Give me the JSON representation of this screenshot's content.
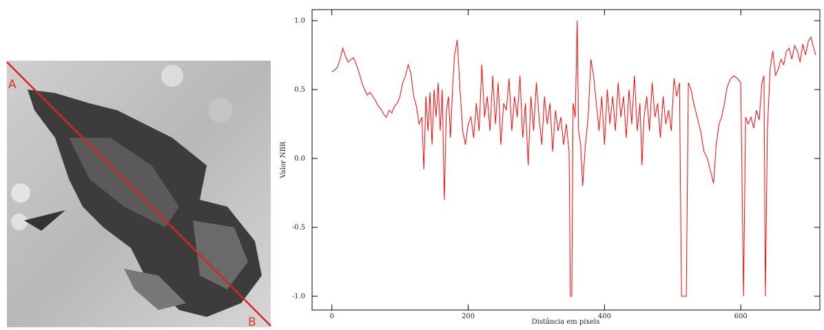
{
  "image": {
    "start_label": "A",
    "end_label": "B"
  },
  "chart_data": {
    "type": "line",
    "ylabel": "Valor NBR",
    "xlabel": "Distância em pixels",
    "xlim": [
      -29,
      716
    ],
    "ylim": [
      -1.1,
      1.08
    ],
    "xticks": [
      0,
      200,
      400,
      600
    ],
    "yticks": [
      {
        "value": -1,
        "label": "-1.0"
      },
      -0.5,
      {
        "value": 0,
        "label": "0.0"
      },
      0.5,
      {
        "value": 1,
        "label": "1.0"
      }
    ],
    "series": [
      {
        "name": "NBR",
        "color": "#ff0000",
        "x": [
          0,
          4,
          8,
          12,
          16,
          20,
          24,
          28,
          32,
          36,
          40,
          44,
          48,
          52,
          56,
          60,
          64,
          68,
          72,
          76,
          80,
          84,
          88,
          92,
          96,
          100,
          104,
          108,
          112,
          116,
          120,
          124,
          128,
          132,
          135,
          138,
          141,
          144,
          147,
          150,
          153,
          156,
          159,
          162,
          165,
          168,
          171,
          174,
          177,
          180,
          184,
          188,
          192,
          196,
          200,
          204,
          208,
          212,
          216,
          220,
          224,
          228,
          232,
          236,
          240,
          244,
          248,
          252,
          256,
          260,
          264,
          268,
          272,
          276,
          280,
          284,
          288,
          292,
          296,
          300,
          304,
          308,
          312,
          316,
          320,
          324,
          328,
          332,
          336,
          340,
          344,
          348,
          350,
          352,
          354,
          357,
          360,
          362,
          365,
          368,
          372,
          376,
          380,
          384,
          388,
          392,
          396,
          400,
          404,
          408,
          412,
          416,
          420,
          424,
          428,
          432,
          436,
          440,
          444,
          448,
          452,
          455,
          458,
          462,
          466,
          470,
          474,
          478,
          482,
          486,
          490,
          494,
          498,
          502,
          506,
          510,
          513,
          520,
          523,
          527,
          531,
          536,
          541,
          546,
          551,
          556,
          560,
          564,
          568,
          572,
          576,
          580,
          585,
          590,
          595,
          600,
          604,
          607,
          611,
          615,
          619,
          623,
          627,
          631,
          634,
          636,
          639,
          643,
          647,
          651,
          655,
          659,
          663,
          667,
          671,
          675,
          679,
          683,
          687,
          691,
          695,
          699,
          703,
          707,
          710
        ],
        "values": [
          0.63,
          0.64,
          0.66,
          0.72,
          0.8,
          0.74,
          0.7,
          0.72,
          0.73,
          0.68,
          0.62,
          0.55,
          0.5,
          0.46,
          0.48,
          0.45,
          0.42,
          0.38,
          0.36,
          0.32,
          0.3,
          0.35,
          0.33,
          0.38,
          0.4,
          0.45,
          0.55,
          0.6,
          0.68,
          0.62,
          0.45,
          0.38,
          0.25,
          0.3,
          -0.08,
          0.45,
          0.2,
          0.48,
          0.1,
          0.5,
          0.3,
          0.55,
          0.2,
          0.5,
          -0.3,
          0.35,
          0.45,
          0.15,
          0.5,
          0.75,
          0.86,
          0.5,
          0.2,
          0.1,
          0.25,
          0.3,
          0.15,
          0.4,
          0.2,
          0.68,
          0.3,
          0.45,
          0.2,
          0.6,
          0.25,
          0.55,
          0.1,
          0.4,
          0.35,
          0.58,
          0.2,
          0.45,
          0.3,
          0.6,
          0.15,
          0.4,
          -0.05,
          0.45,
          0.2,
          0.55,
          0.3,
          0.1,
          0.45,
          0.25,
          0.4,
          0.05,
          0.35,
          0.2,
          0.3,
          0.1,
          0.25,
          0.05,
          -1.0,
          -1.0,
          0.4,
          0.3,
          1.0,
          0.2,
          0.1,
          -0.2,
          0.1,
          0.3,
          0.72,
          0.6,
          0.4,
          0.2,
          0.45,
          0.1,
          0.5,
          0.25,
          0.45,
          0.2,
          0.55,
          0.3,
          0.45,
          0.15,
          0.5,
          0.25,
          0.6,
          0.2,
          0.4,
          -0.05,
          0.3,
          0.45,
          0.2,
          0.55,
          0.3,
          0.4,
          0.15,
          0.45,
          0.25,
          0.35,
          0.2,
          0.58,
          0.45,
          0.55,
          -1.0,
          -1.0,
          0.55,
          0.5,
          0.4,
          0.3,
          0.2,
          0.05,
          0.0,
          -0.1,
          -0.18,
          0.1,
          0.25,
          0.3,
          0.4,
          0.52,
          0.58,
          0.6,
          0.58,
          0.55,
          -1.0,
          0.3,
          0.25,
          0.3,
          0.22,
          0.35,
          0.28,
          0.55,
          0.6,
          -1.0,
          0.2,
          0.65,
          0.78,
          0.6,
          0.65,
          0.72,
          0.68,
          0.78,
          0.8,
          0.72,
          0.82,
          0.78,
          0.7,
          0.83,
          0.75,
          0.85,
          0.88,
          0.8,
          0.75
        ]
      }
    ]
  }
}
